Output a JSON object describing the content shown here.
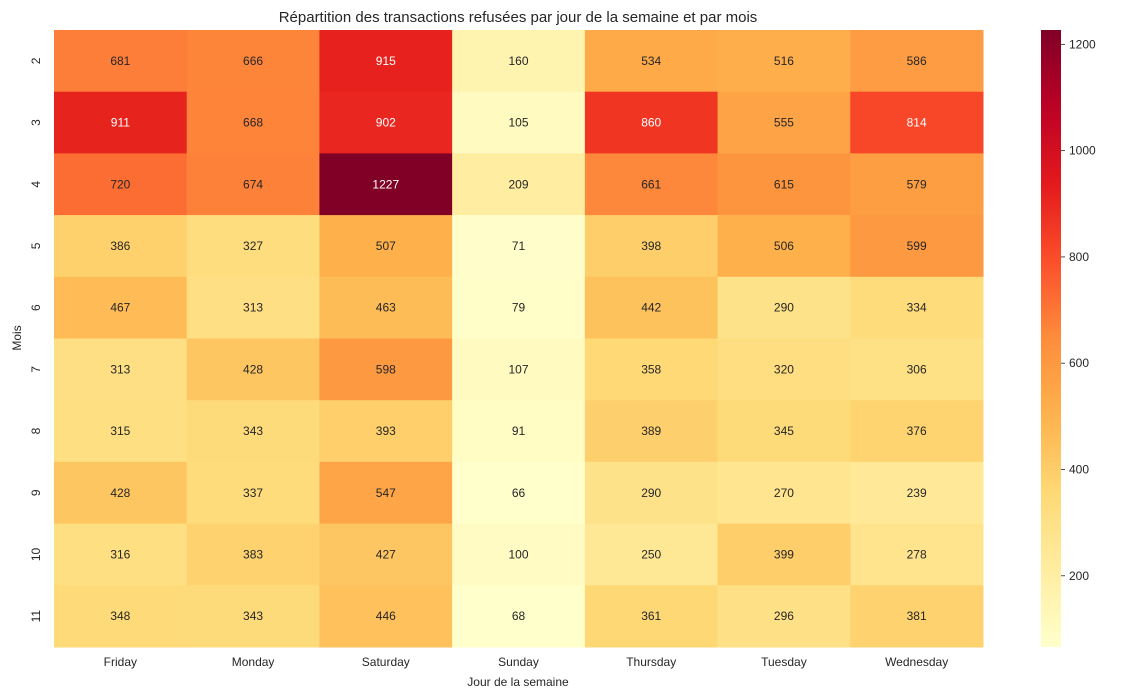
{
  "chart_data": {
    "type": "heatmap",
    "title": "Répartition des transactions refusées par jour de la semaine et par mois",
    "xlabel": "Jour de la semaine",
    "ylabel": "Mois",
    "x_categories": [
      "Friday",
      "Monday",
      "Saturday",
      "Sunday",
      "Thursday",
      "Tuesday",
      "Wednesday"
    ],
    "y_categories": [
      "2",
      "3",
      "4",
      "5",
      "6",
      "7",
      "8",
      "9",
      "10",
      "11"
    ],
    "values": [
      [
        681,
        666,
        915,
        160,
        534,
        516,
        586
      ],
      [
        911,
        668,
        902,
        105,
        860,
        555,
        814
      ],
      [
        720,
        674,
        1227,
        209,
        661,
        615,
        579
      ],
      [
        386,
        327,
        507,
        71,
        398,
        506,
        599
      ],
      [
        467,
        313,
        463,
        79,
        442,
        290,
        334
      ],
      [
        313,
        428,
        598,
        107,
        358,
        320,
        306
      ],
      [
        315,
        343,
        393,
        91,
        389,
        345,
        376
      ],
      [
        428,
        337,
        547,
        66,
        290,
        270,
        239
      ],
      [
        316,
        383,
        427,
        100,
        250,
        399,
        278
      ],
      [
        348,
        343,
        446,
        68,
        361,
        296,
        381
      ]
    ],
    "colormap": "YlOrRd",
    "vmin": 66,
    "vmax": 1227,
    "colorbar_ticks": [
      "200",
      "400",
      "600",
      "800",
      "1000",
      "1200"
    ],
    "colorbar_tick_values": [
      200,
      400,
      600,
      800,
      1000,
      1200
    ],
    "annotated": true,
    "grid": false
  }
}
